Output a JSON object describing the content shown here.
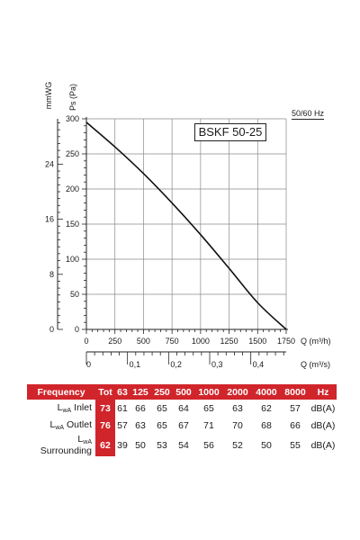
{
  "chart_data": {
    "type": "line",
    "model": "BSKF 50-25",
    "frequency_note": "50/60 Hz",
    "y_axis": {
      "label": "Ps (Pa)",
      "unit_label": "Pa",
      "ticks": [
        0,
        50,
        100,
        150,
        200,
        250,
        300
      ],
      "range": [
        0,
        300
      ]
    },
    "y_axis_secondary": {
      "label": "mmWG",
      "ticks": [
        0,
        8,
        16,
        24
      ],
      "pa_per_unit": 9.80665
    },
    "x_axis": {
      "label": "Q (m³/h)",
      "ticks": [
        0,
        250,
        500,
        750,
        1000,
        1250,
        1500,
        1750
      ],
      "range": [
        0,
        1750
      ]
    },
    "x_axis_secondary": {
      "label": "Q (m³/s)",
      "ticks": [
        "0",
        "0,1",
        "0,2",
        "0,3",
        "0,4"
      ],
      "tick_values": [
        0,
        0.1,
        0.2,
        0.3,
        0.4
      ]
    },
    "series": [
      {
        "x": [
          0,
          250,
          500,
          750,
          1000,
          1250,
          1500,
          1750
        ],
        "y": [
          295,
          260,
          222,
          180,
          135,
          87,
          38,
          0
        ]
      }
    ],
    "grid": true
  },
  "table": {
    "headers": [
      "Frequency",
      "Tot",
      "63",
      "125",
      "250",
      "500",
      "1000",
      "2000",
      "4000",
      "8000",
      "Hz"
    ],
    "rows": [
      {
        "label_main": "L",
        "label_sub": "wA",
        "label_rest": " Inlet",
        "tot": "73",
        "values": [
          "61",
          "66",
          "65",
          "64",
          "65",
          "63",
          "62",
          "57"
        ],
        "unit": "dB(A)"
      },
      {
        "label_main": "L",
        "label_sub": "wA",
        "label_rest": " Outlet",
        "tot": "76",
        "values": [
          "57",
          "63",
          "65",
          "67",
          "71",
          "70",
          "68",
          "66"
        ],
        "unit": "dB(A)"
      },
      {
        "label_main": "L",
        "label_sub": "wA",
        "label_rest": " Surrounding",
        "tot": "62",
        "values": [
          "39",
          "50",
          "53",
          "54",
          "56",
          "52",
          "50",
          "55"
        ],
        "unit": "dB(A)"
      }
    ]
  },
  "colors": {
    "accent_red": "#d0252b",
    "curve": "#111111",
    "grid": "#8a8a8a"
  }
}
